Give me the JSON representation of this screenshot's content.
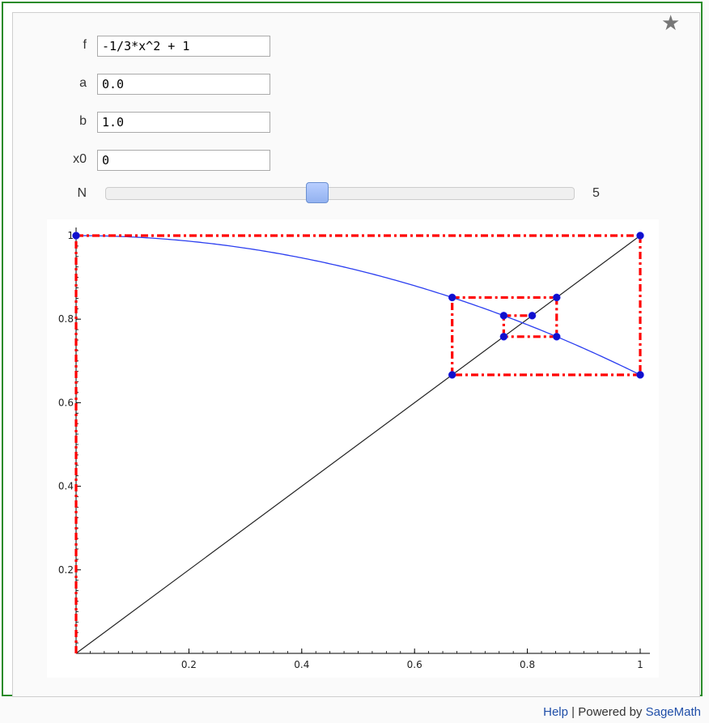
{
  "form": {
    "f": {
      "label": "f",
      "value": "-1/3*x^2 + 1"
    },
    "a": {
      "label": "a",
      "value": "0.0"
    },
    "b": {
      "label": "b",
      "value": "1.0"
    },
    "x0": {
      "label": "x0",
      "value": "0"
    },
    "N": {
      "label": "N",
      "value": "5",
      "slider_fraction": 0.45
    }
  },
  "star_icon": "star-icon",
  "footer": {
    "help": "Help",
    "separator": " | Powered by ",
    "sagemath": "SageMath"
  },
  "chart_data": {
    "type": "line",
    "xlim": [
      0,
      1
    ],
    "ylim": [
      0,
      1
    ],
    "xticks": [
      "0.2",
      "0.4",
      "0.6",
      "0.8",
      "1"
    ],
    "yticks": [
      "0.2",
      "0.4",
      "0.6",
      "0.8",
      "1"
    ],
    "grid": false,
    "curve": {
      "function": "-1/3*x^2 + 1",
      "color": "#2b3ef0"
    },
    "diagonal": {
      "function": "x",
      "color": "#222222"
    },
    "cobweb_color": "#ff0000",
    "point_color": "#1010cc",
    "iterates": [
      0,
      1,
      0.6667,
      0.8519,
      0.7581,
      0.8085
    ],
    "points": [
      [
        0,
        1
      ],
      [
        1,
        1
      ],
      [
        1,
        0.6667
      ],
      [
        0.6667,
        0.6667
      ],
      [
        0.6667,
        0.8519
      ],
      [
        0.8519,
        0.8519
      ],
      [
        0.8519,
        0.7581
      ],
      [
        0.7581,
        0.7581
      ],
      [
        0.7581,
        0.8085
      ],
      [
        0.8085,
        0.8085
      ]
    ]
  }
}
